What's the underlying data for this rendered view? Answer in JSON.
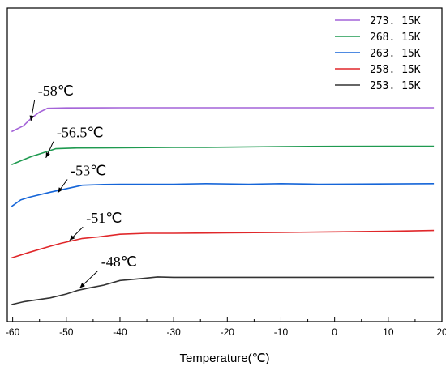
{
  "chart_data": {
    "type": "line",
    "xlabel": "Temperature(℃)",
    "ylabel": "",
    "xlim": [
      -61,
      20
    ],
    "xticks": [
      -60,
      -50,
      -40,
      -30,
      -20,
      -10,
      0,
      10,
      20
    ],
    "xtick_labels": [
      "-60",
      "-50",
      "-40",
      "-30",
      "-20",
      "-10",
      "0",
      "10",
      "20"
    ],
    "yticks_shown": false,
    "grid": false,
    "legend_position": "top-right",
    "series": [
      {
        "name": "273. 15K",
        "color": "#a463d8",
        "x": [
          -60.2,
          -58.0,
          -56.5,
          -55.0,
          -53.5,
          -50.0,
          -40.0,
          -30.0,
          -20.0,
          -10.0,
          0.0,
          10.0,
          18.5
        ],
        "y": [
          0.89,
          0.92,
          0.96,
          0.99,
          1.01,
          1.012,
          1.013,
          1.013,
          1.013,
          1.013,
          1.013,
          1.013,
          1.013
        ]
      },
      {
        "name": "268. 15K",
        "color": "#1f9a50",
        "x": [
          -60.2,
          -58.0,
          -56.5,
          -55.0,
          -52.0,
          -48.0,
          -40.0,
          -30.0,
          -24.0,
          -20.0,
          -10.0,
          0.0,
          10.0,
          18.5
        ],
        "y": [
          0.72,
          0.745,
          0.762,
          0.775,
          0.802,
          0.806,
          0.807,
          0.809,
          0.809,
          0.81,
          0.813,
          0.814,
          0.815,
          0.815
        ]
      },
      {
        "name": "263. 15K",
        "color": "#1565d8",
        "x": [
          -60.2,
          -58.5,
          -57.0,
          -53.0,
          -47.0,
          -43.0,
          -40.0,
          -30.0,
          -24.0,
          -16.0,
          -10.0,
          -3.0,
          5.0,
          18.5
        ],
        "y": [
          0.505,
          0.538,
          0.552,
          0.578,
          0.614,
          0.618,
          0.619,
          0.619,
          0.622,
          0.619,
          0.622,
          0.619,
          0.62,
          0.622
        ]
      },
      {
        "name": "258. 15K",
        "color": "#e0272a",
        "x": [
          -60.2,
          -57.0,
          -53.0,
          -51.0,
          -47.0,
          -44.0,
          -40.0,
          -35.0,
          -30.0,
          -20.0,
          -10.0,
          0.0,
          10.0,
          18.5
        ],
        "y": [
          0.24,
          0.268,
          0.3,
          0.315,
          0.34,
          0.348,
          0.362,
          0.367,
          0.367,
          0.369,
          0.371,
          0.374,
          0.377,
          0.381
        ]
      },
      {
        "name": "253. 15K",
        "color": "#333333",
        "x": [
          -60.2,
          -58.0,
          -53.0,
          -50.0,
          -48.0,
          -46.0,
          -43.0,
          -40.0,
          -36.0,
          -33.0,
          -30.0,
          -20.0,
          -10.0,
          0.0,
          10.0,
          18.5
        ],
        "y": [
          0.0,
          0.014,
          0.034,
          0.054,
          0.072,
          0.084,
          0.1,
          0.124,
          0.134,
          0.142,
          0.14,
          0.14,
          0.14,
          0.14,
          0.14,
          0.14
        ]
      }
    ],
    "annotations": [
      {
        "text": "-58℃",
        "label_x": -55.3,
        "label_y": 1.075,
        "arrow_to_x": -56.6,
        "arrow_to_y": 0.945
      },
      {
        "text": "-56.5℃",
        "label_x": -51.8,
        "label_y": 0.86,
        "arrow_to_x": -53.8,
        "arrow_to_y": 0.755
      },
      {
        "text": "-53℃",
        "label_x": -49.2,
        "label_y": 0.665,
        "arrow_to_x": -51.6,
        "arrow_to_y": 0.575
      },
      {
        "text": "-51℃",
        "label_x": -46.3,
        "label_y": 0.42,
        "arrow_to_x": -49.4,
        "arrow_to_y": 0.33
      },
      {
        "text": "-48℃",
        "label_x": -43.5,
        "label_y": 0.195,
        "arrow_to_x": -47.5,
        "arrow_to_y": 0.085
      }
    ]
  }
}
